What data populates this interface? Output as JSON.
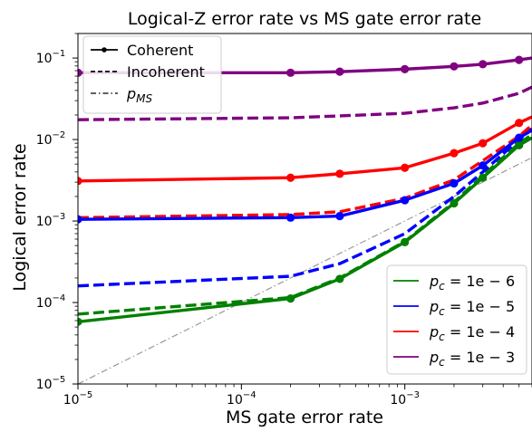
{
  "chart_data": {
    "type": "line",
    "title": "Logical-Z error rate vs MS gate error rate",
    "xlabel": "MS gate error rate",
    "ylabel": "Logical error rate",
    "x_scale": "log",
    "y_scale": "log",
    "xlim": [
      1e-05,
      0.006
    ],
    "ylim": [
      1e-05,
      0.2
    ],
    "x_ticks": [
      {
        "value": 1e-05,
        "mantissa": "10",
        "exp": "−5"
      },
      {
        "value": 0.0001,
        "mantissa": "10",
        "exp": "−4"
      },
      {
        "value": 0.001,
        "mantissa": "10",
        "exp": "−3"
      }
    ],
    "y_ticks": [
      {
        "value": 1e-05,
        "mantissa": "10",
        "exp": "−5"
      },
      {
        "value": 0.0001,
        "mantissa": "10",
        "exp": "−4"
      },
      {
        "value": 0.001,
        "mantissa": "10",
        "exp": "−3"
      },
      {
        "value": 0.01,
        "mantissa": "10",
        "exp": "−2"
      },
      {
        "value": 0.1,
        "mantissa": "10",
        "exp": "−1"
      }
    ],
    "grid": false,
    "style_legend": {
      "placement": "top-left",
      "entries": [
        {
          "style": "solid-marker",
          "label": "Coherent"
        },
        {
          "style": "dashed",
          "label": "Incoherent"
        },
        {
          "style": "dashdot",
          "label_base": "p",
          "label_sub": "MS"
        }
      ]
    },
    "color_legend": {
      "placement": "lower-right",
      "entries": [
        {
          "color": "#008000",
          "label_base": "p",
          "label_sub": "c",
          "label_rest": " = 1e − 6"
        },
        {
          "color": "#0000ff",
          "label_base": "p",
          "label_sub": "c",
          "label_rest": " = 1e − 5"
        },
        {
          "color": "#ff0000",
          "label_base": "p",
          "label_sub": "c",
          "label_rest": " = 1e − 4"
        },
        {
          "color": "#800080",
          "label_base": "p",
          "label_sub": "c",
          "label_rest": " = 1e − 3"
        }
      ]
    },
    "reference_line": {
      "x": [
        1e-05,
        0.006
      ],
      "y": [
        1e-05,
        0.006
      ],
      "color": "#999999"
    },
    "x": [
      1e-05,
      0.0002,
      0.0004,
      0.001,
      0.002,
      0.003,
      0.005,
      0.006
    ],
    "series": [
      {
        "color": "#008000",
        "kind": "coherent",
        "y": [
          5.8e-05,
          0.000112,
          0.000195,
          0.00055,
          0.00165,
          0.0034,
          0.0085,
          0.0105
        ]
      },
      {
        "color": "#008000",
        "kind": "incoherent",
        "y": [
          7.2e-05,
          0.000115,
          0.0002,
          0.00056,
          0.0017,
          0.0036,
          0.009,
          0.0115
        ]
      },
      {
        "color": "#0000ff",
        "kind": "coherent",
        "y": [
          0.00105,
          0.0011,
          0.00115,
          0.0018,
          0.0029,
          0.0048,
          0.0105,
          0.013
        ]
      },
      {
        "color": "#0000ff",
        "kind": "incoherent",
        "y": [
          0.00016,
          0.00021,
          0.0003,
          0.0007,
          0.002,
          0.004,
          0.01,
          0.0135
        ]
      },
      {
        "color": "#ff0000",
        "kind": "coherent",
        "y": [
          0.0031,
          0.0034,
          0.0038,
          0.0045,
          0.0068,
          0.009,
          0.016,
          0.019
        ]
      },
      {
        "color": "#ff0000",
        "kind": "incoherent",
        "y": [
          0.0011,
          0.0012,
          0.0013,
          0.0019,
          0.0032,
          0.0055,
          0.011,
          0.015
        ]
      },
      {
        "color": "#800080",
        "kind": "coherent",
        "y": [
          0.066,
          0.066,
          0.068,
          0.073,
          0.079,
          0.084,
          0.095,
          0.1
        ]
      },
      {
        "color": "#800080",
        "kind": "incoherent",
        "y": [
          0.0175,
          0.0185,
          0.0195,
          0.021,
          0.0245,
          0.028,
          0.037,
          0.044
        ]
      }
    ],
    "marker_x": [
      1e-05,
      0.0002,
      0.0004,
      0.001,
      0.002,
      0.003,
      0.005
    ]
  }
}
